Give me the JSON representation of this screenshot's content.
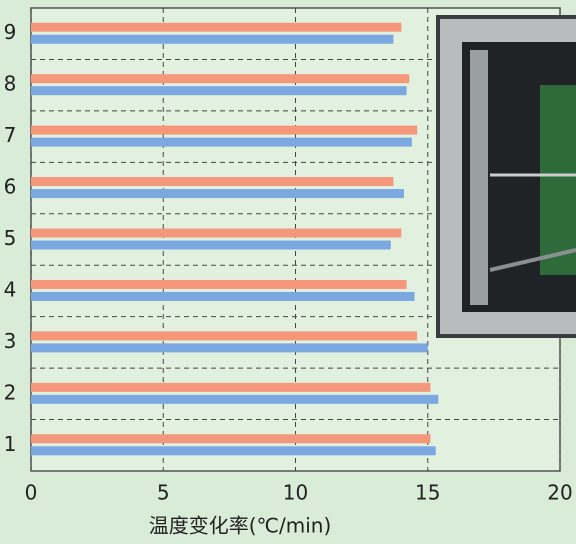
{
  "chart_data": {
    "type": "bar",
    "orientation": "horizontal",
    "x_label": "温度变化率(℃/min)",
    "categories": [
      "1",
      "2",
      "3",
      "4",
      "5",
      "6",
      "7",
      "8",
      "9"
    ],
    "series": [
      {
        "color": "#f4977b",
        "values": [
          15.1,
          15.1,
          14.6,
          14.2,
          14.0,
          13.7,
          14.6,
          14.3,
          14.0
        ]
      },
      {
        "color": "#7ca8e2",
        "values": [
          15.3,
          15.4,
          15.0,
          14.5,
          13.6,
          14.1,
          14.4,
          14.2,
          13.7
        ]
      }
    ],
    "xlim": [
      0,
      20
    ],
    "xticks": [
      0,
      5,
      10,
      15,
      20
    ],
    "grid": true
  }
}
